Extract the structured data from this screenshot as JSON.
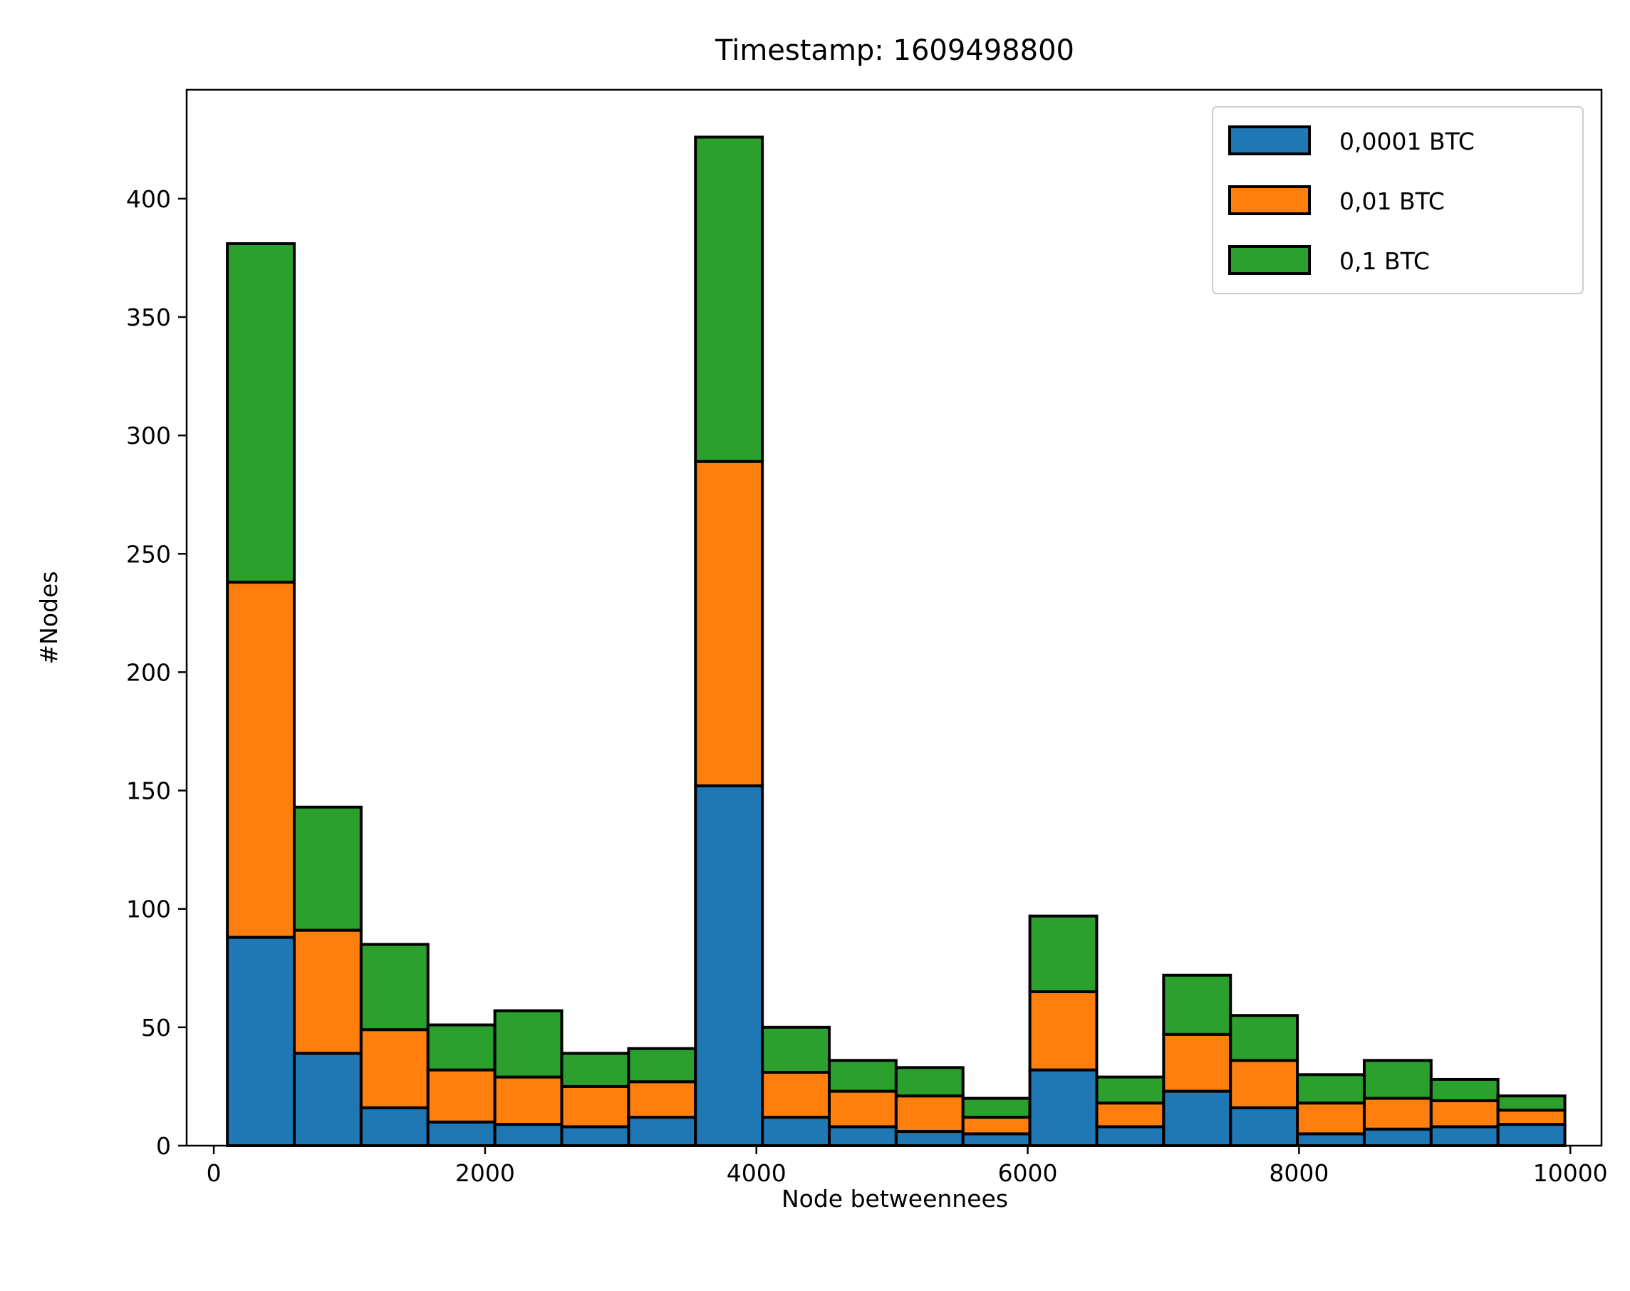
{
  "chart_data": {
    "type": "bar",
    "stacked": true,
    "histogram": true,
    "title": "Timestamp: 1609498800",
    "xlabel": "Node betweennees",
    "ylabel": "#Nodes",
    "xlim": [
      -200,
      10230
    ],
    "ylim": [
      0,
      446
    ],
    "xticks": [
      0,
      2000,
      4000,
      6000,
      8000,
      10000
    ],
    "xtick_labels": [
      "0",
      "2000",
      "4000",
      "6000",
      "8000",
      "10000"
    ],
    "yticks": [
      0,
      50,
      100,
      150,
      200,
      250,
      300,
      350,
      400
    ],
    "ytick_labels": [
      "0",
      "50",
      "100",
      "150",
      "200",
      "250",
      "300",
      "350",
      "400"
    ],
    "bin_start": 100,
    "bin_width": 493,
    "grid": false,
    "legend_position": "top-right",
    "series": [
      {
        "name": "0,0001 BTC",
        "color": "#1f77b4",
        "values": [
          88,
          39,
          16,
          10,
          9,
          8,
          12,
          152,
          12,
          8,
          6,
          5,
          32,
          8,
          23,
          16,
          5,
          7,
          8,
          9
        ]
      },
      {
        "name": "0,01 BTC",
        "color": "#ff7f0e",
        "values": [
          150,
          52,
          33,
          22,
          20,
          17,
          15,
          137,
          19,
          15,
          15,
          7,
          33,
          10,
          24,
          20,
          13,
          13,
          11,
          6
        ]
      },
      {
        "name": "0,1 BTC",
        "color": "#2ca02c",
        "values": [
          143,
          52,
          36,
          19,
          28,
          14,
          14,
          137,
          19,
          13,
          12,
          8,
          32,
          11,
          25,
          19,
          12,
          16,
          9,
          6
        ]
      }
    ]
  }
}
